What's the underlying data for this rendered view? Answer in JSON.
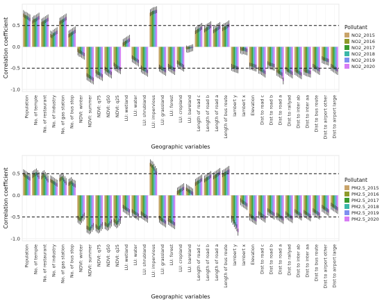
{
  "chart_data": [
    {
      "type": "bar",
      "xlabel": "Geographic variables",
      "ylabel": "Correlation coefficient",
      "ylim": [
        -1.05,
        1.0
      ],
      "yticks": [
        -1.0,
        -0.5,
        0.0,
        0.5
      ],
      "ytick_labels": [
        "-1.0",
        "-0.5",
        "0.0",
        "0.5"
      ],
      "reference_lines": [
        0.5,
        -0.5
      ],
      "legend": {
        "title": "Pollutant",
        "placement": "right"
      },
      "grid": true,
      "categories": [
        "Population",
        "No. of temple",
        "No. of restaurant",
        "No. of industry",
        "No. of gas station",
        "No. of bus stop",
        "NDVI: winter",
        "NDVI: summer",
        "NDVI: q75",
        "NDVI: q50",
        "NDVI: q25",
        "LU: wetland",
        "LU: water",
        "LU: shrubland",
        "LU: impervious",
        "LU: grassland",
        "LU: forest",
        "LU: cropland",
        "LU: bareland",
        "Length of road c",
        "Length of road b",
        "Length of road a",
        "Length of bus route",
        "lambert y",
        "lambert x",
        "Elevation",
        "Dist to road c",
        "Dist to road b",
        "Dist to road a",
        "Dist to railyad",
        "Dist to inter ab",
        "Dist to inter aa",
        "Dist to bus route",
        "Dist to airport other",
        "Dist to airport large"
      ],
      "series": [
        {
          "name": "NO2_2015",
          "color": "#c9a46a",
          "values": [
            0.78,
            0.62,
            0.58,
            0.3,
            0.6,
            0.3,
            -0.12,
            -0.7,
            -0.62,
            -0.55,
            -0.45,
            0.1,
            -0.28,
            -0.52,
            0.8,
            -0.5,
            -0.48,
            -0.4,
            -0.05,
            0.38,
            0.42,
            0.4,
            0.45,
            -0.48,
            -0.08,
            -0.45,
            -0.55,
            -0.42,
            -0.6,
            -0.55,
            -0.58,
            -0.58,
            -0.48,
            -0.3,
            -0.48
          ]
        },
        {
          "name": "NO2_2016",
          "color": "#8f9a2b",
          "values": [
            0.75,
            0.65,
            0.6,
            0.28,
            0.62,
            0.32,
            -0.15,
            -0.72,
            -0.65,
            -0.58,
            -0.48,
            0.12,
            -0.3,
            -0.55,
            0.82,
            -0.52,
            -0.5,
            -0.42,
            -0.06,
            0.4,
            0.44,
            0.42,
            0.47,
            -0.5,
            -0.1,
            -0.46,
            -0.56,
            -0.44,
            -0.62,
            -0.58,
            -0.6,
            -0.6,
            -0.5,
            -0.32,
            -0.5
          ]
        },
        {
          "name": "NO2_2017",
          "color": "#3a9a2e",
          "values": [
            0.74,
            0.66,
            0.62,
            0.32,
            0.64,
            0.34,
            -0.16,
            -0.74,
            -0.66,
            -0.6,
            -0.5,
            0.14,
            -0.32,
            -0.56,
            0.84,
            -0.54,
            -0.52,
            -0.44,
            -0.05,
            0.42,
            0.46,
            0.44,
            0.48,
            -0.51,
            -0.09,
            -0.47,
            -0.58,
            -0.45,
            -0.64,
            -0.6,
            -0.62,
            -0.61,
            -0.52,
            -0.33,
            -0.52
          ]
        },
        {
          "name": "NO2_2018",
          "color": "#3bb7a8",
          "values": [
            0.72,
            0.68,
            0.64,
            0.34,
            0.66,
            0.36,
            -0.18,
            -0.76,
            -0.68,
            -0.62,
            -0.52,
            0.16,
            -0.34,
            -0.58,
            0.85,
            -0.56,
            -0.54,
            -0.46,
            -0.04,
            0.44,
            0.48,
            0.46,
            0.5,
            -0.52,
            -0.1,
            -0.48,
            -0.6,
            -0.46,
            -0.66,
            -0.62,
            -0.64,
            -0.62,
            -0.54,
            -0.34,
            -0.54
          ]
        },
        {
          "name": "NO2_2019",
          "color": "#7f8ff0",
          "values": [
            0.7,
            0.7,
            0.66,
            0.36,
            0.68,
            0.38,
            -0.2,
            -0.78,
            -0.7,
            -0.64,
            -0.54,
            0.18,
            -0.36,
            -0.6,
            0.86,
            -0.58,
            -0.56,
            -0.48,
            -0.03,
            0.46,
            0.5,
            0.48,
            0.52,
            -0.53,
            -0.11,
            -0.49,
            -0.62,
            -0.47,
            -0.68,
            -0.64,
            -0.66,
            -0.63,
            -0.56,
            -0.35,
            -0.56
          ]
        },
        {
          "name": "NO2_2020",
          "color": "#d77cf5",
          "values": [
            0.68,
            0.72,
            0.68,
            0.38,
            0.7,
            0.4,
            -0.22,
            -0.8,
            -0.72,
            -0.66,
            -0.56,
            0.2,
            -0.38,
            -0.62,
            0.87,
            -0.6,
            -0.58,
            -0.5,
            -0.02,
            0.48,
            0.52,
            0.5,
            0.54,
            -0.54,
            -0.12,
            -0.5,
            -0.64,
            -0.48,
            -0.8,
            -0.66,
            -0.68,
            -0.64,
            -0.58,
            -0.36,
            -0.58
          ]
        }
      ]
    },
    {
      "type": "bar",
      "xlabel": "Geographic variables",
      "ylabel": "Correlation coefficient",
      "ylim": [
        -1.05,
        0.92
      ],
      "yticks": [
        -1.0,
        -0.5,
        0.0,
        0.5
      ],
      "ytick_labels": [
        "-1.0",
        "-0.5",
        "0.0",
        "0.5"
      ],
      "reference_lines": [
        0.5,
        -0.5
      ],
      "legend": {
        "title": "Pollutant",
        "placement": "right"
      },
      "grid": true,
      "categories": [
        "Population",
        "No. of temple",
        "No. of restaurant",
        "No. of industry",
        "No. of gas station",
        "No. of bus stop",
        "NDVI: winter",
        "NDVI: summer",
        "NDVI: q75",
        "NDVI: q50",
        "NDVI: q25",
        "LU: wetland",
        "LU: water",
        "LU: shrubland",
        "LU: impervious",
        "LU: grassland",
        "LU: forest",
        "LU: cropland",
        "LU: bareland",
        "Length of road c",
        "Length of road b",
        "Length of road a",
        "Length of bus route",
        "lambert y",
        "lambert x",
        "Elevation",
        "Dist to road c",
        "Dist to road b",
        "Dist to road a",
        "Dist to railyad",
        "Dist to inter ab",
        "Dist to inter aa",
        "Dist to bus route",
        "Dist to airport other",
        "Dist to airport large"
      ],
      "series": [
        {
          "name": "PM2.5_2015",
          "color": "#c9a46a",
          "values": [
            0.52,
            0.48,
            0.45,
            0.38,
            0.4,
            0.3,
            -0.55,
            -0.78,
            -0.75,
            -0.7,
            -0.62,
            -0.3,
            -0.4,
            -0.45,
            0.75,
            -0.55,
            -0.6,
            0.1,
            0.18,
            0.3,
            0.38,
            0.45,
            0.5,
            -0.55,
            -0.15,
            -0.5,
            -0.45,
            -0.38,
            -0.48,
            -0.45,
            -0.4,
            -0.42,
            -0.38,
            -0.3,
            -0.25
          ]
        },
        {
          "name": "PM2.5_2016",
          "color": "#8f9a2b",
          "values": [
            0.5,
            0.5,
            0.48,
            0.36,
            0.42,
            0.32,
            -0.58,
            -0.8,
            -0.78,
            -0.72,
            -0.65,
            -0.32,
            -0.42,
            -0.47,
            0.72,
            -0.58,
            -0.62,
            0.12,
            0.16,
            0.32,
            0.4,
            0.47,
            0.52,
            -0.6,
            -0.18,
            -0.52,
            -0.47,
            -0.4,
            -0.5,
            -0.48,
            -0.42,
            -0.44,
            -0.4,
            -0.32,
            -0.27
          ]
        },
        {
          "name": "PM2.5_2017",
          "color": "#3a9a2e",
          "values": [
            0.48,
            0.52,
            0.5,
            0.34,
            0.44,
            0.34,
            -0.6,
            -0.82,
            -0.8,
            -0.74,
            -0.68,
            -0.34,
            -0.44,
            -0.49,
            0.7,
            -0.6,
            -0.64,
            0.14,
            0.14,
            0.34,
            0.42,
            0.49,
            0.54,
            -0.65,
            -0.2,
            -0.54,
            -0.49,
            -0.42,
            -0.52,
            -0.5,
            -0.44,
            -0.46,
            -0.42,
            -0.34,
            -0.29
          ]
        },
        {
          "name": "PM2.5_2018",
          "color": "#3bb7a8",
          "values": [
            0.46,
            0.54,
            0.46,
            0.32,
            0.4,
            0.3,
            -0.56,
            -0.8,
            -0.78,
            -0.72,
            -0.66,
            -0.36,
            -0.46,
            -0.51,
            0.65,
            -0.62,
            -0.66,
            0.16,
            0.12,
            0.36,
            0.44,
            0.51,
            0.56,
            -0.7,
            -0.22,
            -0.56,
            -0.51,
            -0.44,
            -0.54,
            -0.52,
            -0.46,
            -0.48,
            -0.44,
            -0.36,
            -0.31
          ]
        },
        {
          "name": "PM2.5_2019",
          "color": "#7f8ff0",
          "values": [
            0.44,
            0.5,
            0.42,
            0.3,
            0.36,
            0.28,
            -0.52,
            -0.76,
            -0.74,
            -0.68,
            -0.62,
            -0.38,
            -0.48,
            -0.53,
            0.6,
            -0.64,
            -0.68,
            0.18,
            0.1,
            0.38,
            0.46,
            0.53,
            0.58,
            -0.75,
            -0.24,
            -0.58,
            -0.53,
            -0.46,
            -0.56,
            -0.54,
            -0.48,
            -0.5,
            -0.46,
            -0.38,
            -0.33
          ]
        },
        {
          "name": "PM2.5_2020",
          "color": "#d77cf5",
          "values": [
            0.42,
            0.46,
            0.38,
            0.28,
            0.32,
            0.26,
            -0.48,
            -0.72,
            -0.7,
            -0.64,
            -0.58,
            -0.4,
            -0.5,
            -0.55,
            0.55,
            -0.66,
            -0.7,
            0.2,
            0.08,
            0.4,
            0.48,
            0.55,
            0.6,
            -0.85,
            -0.26,
            -0.6,
            -0.55,
            -0.48,
            -0.58,
            -0.56,
            -0.5,
            -0.52,
            -0.48,
            -0.4,
            -0.35
          ]
        }
      ]
    }
  ]
}
